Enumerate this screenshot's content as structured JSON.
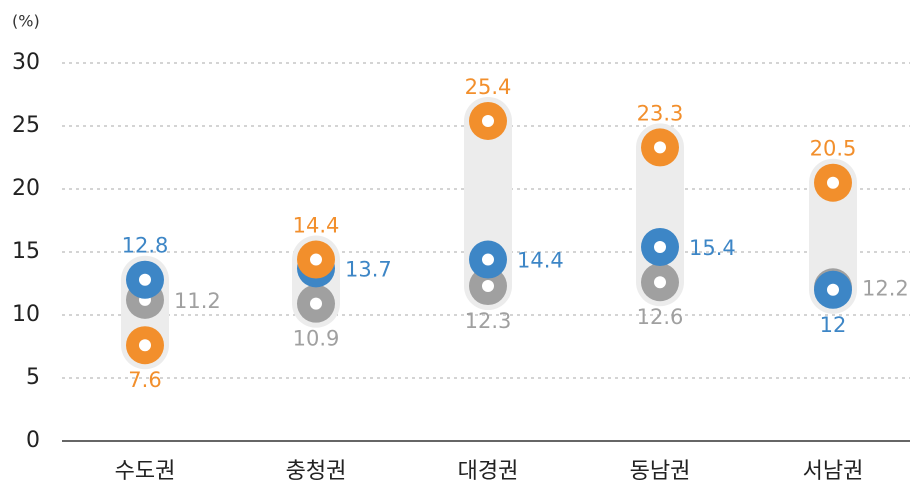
{
  "chart_data": {
    "type": "dot",
    "unit_label": "(%)",
    "categories": [
      "수도권",
      "충청권",
      "대경권",
      "동남권",
      "서남권"
    ],
    "series": [
      {
        "color": "#a0a0a0",
        "values": [
          11.2,
          10.9,
          12.3,
          12.6,
          12.2
        ]
      },
      {
        "color": "#3d86c6",
        "values": [
          12.8,
          13.7,
          14.4,
          15.4,
          12.0
        ]
      },
      {
        "color": "#f28f2c",
        "values": [
          7.6,
          14.4,
          25.4,
          23.3,
          20.5
        ]
      }
    ],
    "ylim": [
      0,
      30
    ],
    "yticks": [
      0,
      5,
      10,
      15,
      20,
      25,
      30
    ],
    "grid": true
  }
}
